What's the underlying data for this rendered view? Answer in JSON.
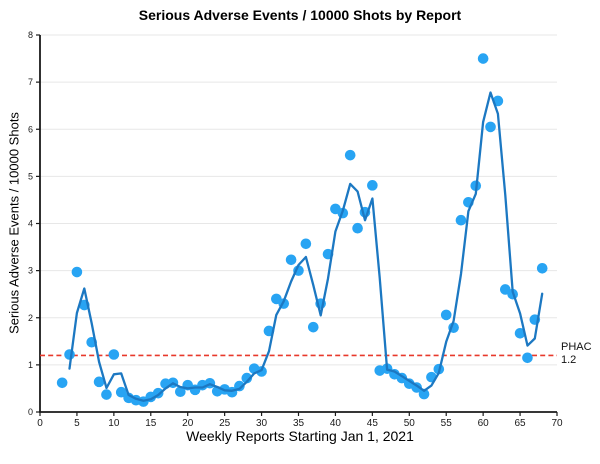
{
  "chart_data": {
    "type": "scatter",
    "title": "Serious Adverse Events / 10000 Shots by Report",
    "xlabel": "Weekly Reports Starting Jan 1, 2021",
    "ylabel": "Serious Adverse Events / 10000 Shots",
    "xlim": [
      0,
      70
    ],
    "ylim": [
      0,
      8
    ],
    "x_ticks": [
      0,
      5,
      10,
      15,
      20,
      25,
      30,
      35,
      40,
      45,
      50,
      55,
      60,
      65,
      70
    ],
    "y_ticks": [
      0,
      1,
      2,
      3,
      4,
      5,
      6,
      7,
      8
    ],
    "grid": "horizontal-only",
    "legend_position": "none",
    "reference_line": {
      "value": 1.2,
      "label_line1": "PHAC",
      "label_line2": "1.2",
      "color": "#E8392B",
      "style": "dashed"
    },
    "series": [
      {
        "name": "serious-adverse-events-per-10000-shots",
        "type": "scatter",
        "color": "#28A4F3",
        "x": [
          3,
          4,
          5,
          6,
          7,
          8,
          9,
          10,
          11,
          12,
          13,
          14,
          15,
          16,
          17,
          18,
          19,
          20,
          21,
          22,
          23,
          24,
          25,
          26,
          27,
          28,
          29,
          30,
          31,
          32,
          33,
          34,
          35,
          36,
          37,
          38,
          39,
          40,
          41,
          42,
          43,
          44,
          45,
          46,
          47,
          48,
          49,
          50,
          51,
          52,
          53,
          54,
          55,
          56,
          57,
          58,
          59,
          60,
          61,
          62,
          63,
          64,
          65,
          66,
          67,
          68
        ],
        "y": [
          0.62,
          1.22,
          2.97,
          2.27,
          1.48,
          0.64,
          0.37,
          1.22,
          0.42,
          0.3,
          0.25,
          0.22,
          0.32,
          0.4,
          0.6,
          0.62,
          0.43,
          0.57,
          0.47,
          0.57,
          0.61,
          0.44,
          0.48,
          0.42,
          0.55,
          0.72,
          0.92,
          0.86,
          1.72,
          2.4,
          2.3,
          3.23,
          3.0,
          3.57,
          1.8,
          2.3,
          3.35,
          4.31,
          4.22,
          5.45,
          3.9,
          4.24,
          4.81,
          0.88,
          0.92,
          0.8,
          0.72,
          0.6,
          0.52,
          0.38,
          0.74,
          0.91,
          2.06,
          1.79,
          4.07,
          4.45,
          4.8,
          7.5,
          6.05,
          6.6,
          2.6,
          2.5,
          1.67,
          1.15,
          1.96,
          3.05
        ]
      },
      {
        "name": "trend-line",
        "type": "line",
        "color": "#1C78C2",
        "x": [
          4,
          5,
          6,
          7,
          8,
          9,
          10,
          11,
          12,
          13,
          14,
          15,
          16,
          17,
          18,
          19,
          20,
          21,
          22,
          23,
          24,
          25,
          26,
          27,
          28,
          29,
          30,
          31,
          32,
          33,
          34,
          35,
          36,
          37,
          38,
          39,
          40,
          41,
          42,
          43,
          44,
          45,
          46,
          47,
          48,
          49,
          50,
          51,
          52,
          53,
          54,
          55,
          56,
          57,
          58,
          59,
          60,
          61,
          62,
          63,
          64,
          65,
          66,
          67,
          68
        ],
        "y": [
          0.92,
          2.1,
          2.62,
          1.88,
          1.06,
          0.51,
          0.8,
          0.82,
          0.36,
          0.28,
          0.24,
          0.27,
          0.36,
          0.5,
          0.61,
          0.53,
          0.5,
          0.52,
          0.52,
          0.59,
          0.53,
          0.46,
          0.45,
          0.49,
          0.64,
          0.82,
          0.89,
          1.29,
          2.06,
          2.35,
          2.77,
          3.12,
          3.29,
          2.69,
          2.05,
          2.83,
          3.83,
          4.27,
          4.84,
          4.68,
          4.07,
          4.53,
          2.85,
          0.9,
          0.86,
          0.76,
          0.66,
          0.56,
          0.45,
          0.56,
          0.83,
          1.49,
          1.93,
          2.93,
          4.26,
          4.63,
          6.15,
          6.78,
          6.33,
          4.6,
          2.55,
          2.09,
          1.41,
          1.56,
          2.51
        ]
      }
    ]
  },
  "colors": {
    "background": "#FFFFFF",
    "axis": "#1A1A1A",
    "gridline": "#E7E7E7",
    "tick_label": "#1A1A1A",
    "scatter_dot": "#28A4F3",
    "trend_line": "#1C78C2",
    "reference_line": "#E8392B"
  }
}
